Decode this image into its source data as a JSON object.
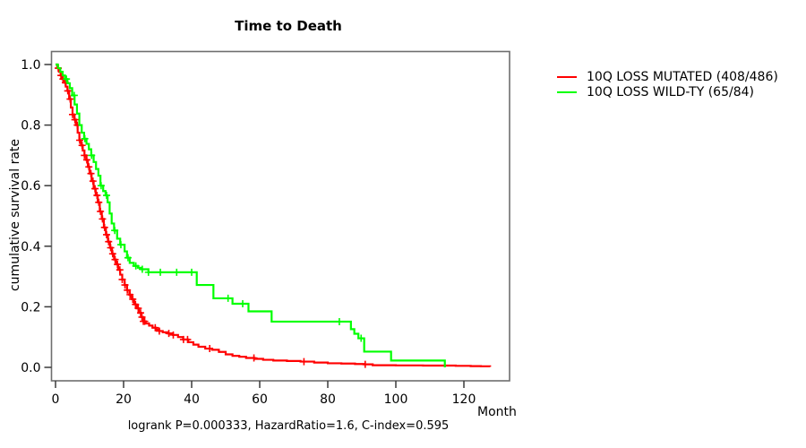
{
  "title": "Time to Death",
  "chart_data": {
    "type": "line",
    "subtype": "kaplan-meier-step",
    "title": "Time to Death",
    "xlabel": "Month",
    "ylabel": "cumulative survival rate",
    "annotation": "logrank P=0.000333, HazardRatio=1.6, C-index=0.595",
    "xlim": [
      0,
      130
    ],
    "ylim": [
      0.0,
      1.0
    ],
    "xticks": [
      0,
      20,
      40,
      60,
      80,
      100,
      120
    ],
    "ytick_labels": [
      "0.0",
      "0.2",
      "0.4",
      "0.6",
      "0.8",
      "1.0"
    ],
    "grid": false,
    "legend_position": "top-right-outside",
    "series": [
      {
        "name": "10Q LOSS MUTATED (408/486)",
        "color": "#ff0000",
        "points": [
          [
            0,
            1.0
          ],
          [
            0.5,
            0.988
          ],
          [
            1,
            0.976
          ],
          [
            1.5,
            0.964
          ],
          [
            2,
            0.952
          ],
          [
            2.5,
            0.94
          ],
          [
            3,
            0.927
          ],
          [
            3.5,
            0.913
          ],
          [
            4,
            0.886
          ],
          [
            4.5,
            0.858
          ],
          [
            5,
            0.835
          ],
          [
            5.5,
            0.818
          ],
          [
            6,
            0.8
          ],
          [
            6.5,
            0.775
          ],
          [
            7,
            0.75
          ],
          [
            7.5,
            0.733
          ],
          [
            8,
            0.716
          ],
          [
            8.5,
            0.7
          ],
          [
            9,
            0.685
          ],
          [
            9.5,
            0.662
          ],
          [
            10,
            0.64
          ],
          [
            10.6,
            0.615
          ],
          [
            11.2,
            0.59
          ],
          [
            11.8,
            0.568
          ],
          [
            12.4,
            0.545
          ],
          [
            13,
            0.515
          ],
          [
            13.6,
            0.49
          ],
          [
            14.2,
            0.462
          ],
          [
            14.8,
            0.438
          ],
          [
            15.4,
            0.415
          ],
          [
            16,
            0.395
          ],
          [
            16.6,
            0.375
          ],
          [
            17.2,
            0.356
          ],
          [
            17.8,
            0.34
          ],
          [
            18.4,
            0.322
          ],
          [
            19,
            0.306
          ],
          [
            19.6,
            0.29
          ],
          [
            20.3,
            0.272
          ],
          [
            21,
            0.255
          ],
          [
            21.7,
            0.24
          ],
          [
            22.4,
            0.225
          ],
          [
            23.1,
            0.208
          ],
          [
            23.8,
            0.195
          ],
          [
            24.5,
            0.18
          ],
          [
            25.2,
            0.166
          ],
          [
            25.8,
            0.152
          ],
          [
            26.5,
            0.145
          ],
          [
            27.5,
            0.138
          ],
          [
            28.5,
            0.131
          ],
          [
            29.5,
            0.125
          ],
          [
            30.5,
            0.12
          ],
          [
            31.5,
            0.116
          ],
          [
            33,
            0.112
          ],
          [
            34.5,
            0.107
          ],
          [
            36,
            0.1
          ],
          [
            37.5,
            0.092
          ],
          [
            39,
            0.083
          ],
          [
            40.5,
            0.075
          ],
          [
            42,
            0.068
          ],
          [
            44,
            0.062
          ],
          [
            46,
            0.058
          ],
          [
            48,
            0.051
          ],
          [
            50,
            0.043
          ],
          [
            52,
            0.038
          ],
          [
            54,
            0.035
          ],
          [
            56,
            0.031
          ],
          [
            58.5,
            0.028
          ],
          [
            61,
            0.025
          ],
          [
            64,
            0.0225
          ],
          [
            68,
            0.021
          ],
          [
            72,
            0.019
          ],
          [
            76,
            0.016
          ],
          [
            80,
            0.0135
          ],
          [
            84,
            0.0125
          ],
          [
            88,
            0.011
          ],
          [
            90.6,
            0.01
          ],
          [
            93.2,
            0.007
          ],
          [
            100,
            0.0065
          ],
          [
            108,
            0.006
          ],
          [
            117.6,
            0.005
          ],
          [
            122,
            0.004
          ],
          [
            125,
            0.0035
          ],
          [
            127.7,
            0.002
          ]
        ],
        "censor_times": [
          0.8,
          1.6,
          2.2,
          2.9,
          3.6,
          4.3,
          5.0,
          5.7,
          6.4,
          7.1,
          7.8,
          8.5,
          9.2,
          9.8,
          10.4,
          11.0,
          11.6,
          12.2,
          12.7,
          13.2,
          13.8,
          14.4,
          15.0,
          15.6,
          16.2,
          16.8,
          17.5,
          18.2,
          18.9,
          19.6,
          20.4,
          21.1,
          21.9,
          22.7,
          23.5,
          24.3,
          25.0,
          25.4,
          25.8,
          26.2,
          29.3,
          30.5,
          33.3,
          34.6,
          37.6,
          38.8,
          45.3,
          58.3,
          73.0,
          91.0
        ]
      },
      {
        "name": "10Q LOSS WILD-TY (65/84)",
        "color": "#00ff00",
        "points": [
          [
            0,
            1.0
          ],
          [
            0.7,
            0.988
          ],
          [
            1.4,
            0.976
          ],
          [
            2.1,
            0.964
          ],
          [
            2.8,
            0.952
          ],
          [
            3.5,
            0.938
          ],
          [
            4.2,
            0.922
          ],
          [
            4.9,
            0.898
          ],
          [
            5.6,
            0.868
          ],
          [
            6.3,
            0.838
          ],
          [
            7,
            0.8
          ],
          [
            7.7,
            0.775
          ],
          [
            8.4,
            0.755
          ],
          [
            9.1,
            0.738
          ],
          [
            9.8,
            0.72
          ],
          [
            10.5,
            0.7
          ],
          [
            11.2,
            0.678
          ],
          [
            11.9,
            0.655
          ],
          [
            12.6,
            0.633
          ],
          [
            13.2,
            0.6
          ],
          [
            14,
            0.582
          ],
          [
            14.7,
            0.568
          ],
          [
            15.3,
            0.545
          ],
          [
            15.9,
            0.508
          ],
          [
            16.5,
            0.475
          ],
          [
            17.2,
            0.452
          ],
          [
            18.1,
            0.425
          ],
          [
            19,
            0.405
          ],
          [
            20.3,
            0.383
          ],
          [
            21,
            0.362
          ],
          [
            21.8,
            0.345
          ],
          [
            23,
            0.335
          ],
          [
            24.2,
            0.329
          ],
          [
            25.1,
            0.324
          ],
          [
            27.3,
            0.314
          ],
          [
            41.5,
            0.272
          ],
          [
            46.4,
            0.228
          ],
          [
            52,
            0.21
          ],
          [
            56.7,
            0.185
          ],
          [
            63.5,
            0.151
          ],
          [
            86.8,
            0.126
          ],
          [
            87.8,
            0.111
          ],
          [
            89,
            0.096
          ],
          [
            90.7,
            0.052
          ],
          [
            98.6,
            0.0225
          ],
          [
            114.4,
            0.0
          ]
        ],
        "censor_times": [
          3.2,
          5.5,
          8.6,
          10.6,
          13.4,
          15.0,
          17.4,
          19.2,
          21.3,
          23.6,
          25.5,
          27.3,
          30.8,
          35.6,
          40.0,
          50.7,
          55.0,
          83.4,
          89.8
        ]
      }
    ]
  },
  "legend": {
    "items": [
      {
        "label": "10Q LOSS MUTATED (408/486)",
        "color": "#ff0000"
      },
      {
        "label": "10Q LOSS WILD-TY (65/84)",
        "color": "#00ff00"
      }
    ]
  },
  "colors": {
    "mutated": "#ff0000",
    "wild_type": "#00ff00",
    "frame": "#6e6e6e",
    "tick": "#3a3a3a",
    "text": "#000000",
    "background": "#ffffff"
  }
}
